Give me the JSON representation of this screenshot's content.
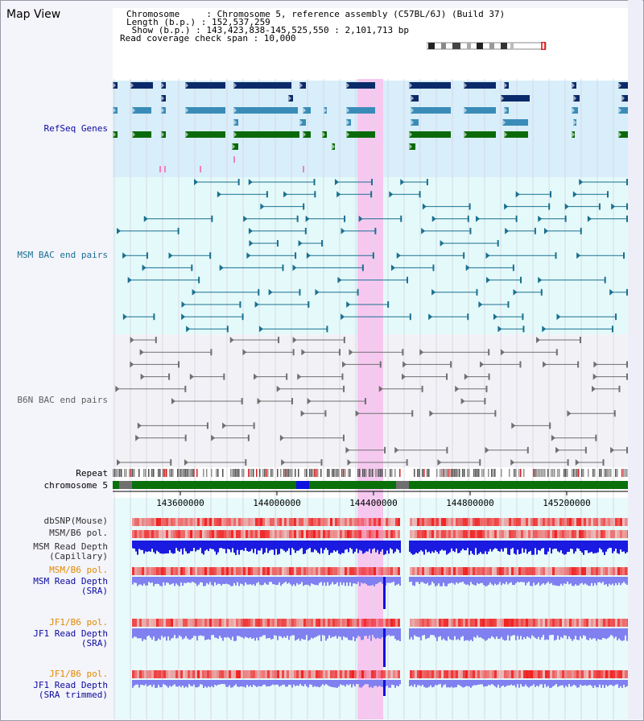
{
  "view": {
    "title": "Map View",
    "info": [
      "Chromosome     : Chromosome 5, reference assembly (C57BL/6J) (Build 37)",
      "Length (b.p.) : 152,537,259",
      " Show (b.p.) : 143,423,838-145,525,550 : 2,101,713 bp",
      "Read coverage check span : 10,000"
    ]
  },
  "tracks": {
    "refseq": {
      "label": "RefSeq Genes",
      "color": "#0a0aa0"
    },
    "msm_bac": {
      "label": "MSM BAC end pairs",
      "color": "#1a7090"
    },
    "b6n_bac": {
      "label": "B6N BAC end pairs",
      "color": "#606060"
    },
    "repeat": {
      "label": "Repeat",
      "color": "#000000"
    },
    "chromosome": {
      "label": "chromosome 5",
      "color": "#000000"
    },
    "dbsnp": {
      "label": "dbSNP(Mouse)",
      "color": "#303030"
    },
    "msm_b6_pol": {
      "label": "MSM/B6 pol.",
      "color": "#303030"
    },
    "msm_depth_cap": {
      "label": "MSM Read Depth",
      "sub": "(Capillary)",
      "color": "#303030"
    },
    "msm_b6_pol2": {
      "label": "MSM/B6 pol.",
      "color": "#e08a00"
    },
    "msm_depth_sra": {
      "label": "MSM Read Depth",
      "sub": "(SRA)",
      "color": "#0a0aa0"
    },
    "jf1_b6_pol": {
      "label": "JF1/B6 pol.",
      "color": "#e08a00"
    },
    "jf1_depth_sra": {
      "label": "JF1 Read Depth",
      "sub": "(SRA)",
      "color": "#0a0aa0"
    },
    "jf1_b6_pol2": {
      "label": "JF1/B6 pol.",
      "color": "#e08a00"
    },
    "jf1_depth_trim": {
      "label": "JF1 Read Depth",
      "sub": "(SRA trimmed)",
      "color": "#0a0aa0"
    }
  },
  "axis": {
    "ticks": [
      "143600000",
      "144000000",
      "144400000",
      "144800000",
      "145200000"
    ]
  },
  "colors": {
    "highlight": "#f6c8f0",
    "refseq_bg": "#d8eefa",
    "msm_bg": "#e4fafa",
    "b6n_bg": "#f2f2f6",
    "lower_bg": "#e8fafa",
    "gene_dark": "#0a2a6a",
    "gene_mid": "#3a8cb8",
    "gene_green": "#0a6a0a",
    "chrom_green": "#0a700a",
    "depth_blue": "#1a1ae0",
    "depth_light": "#8080f0",
    "pol_red": "#f02020"
  }
}
